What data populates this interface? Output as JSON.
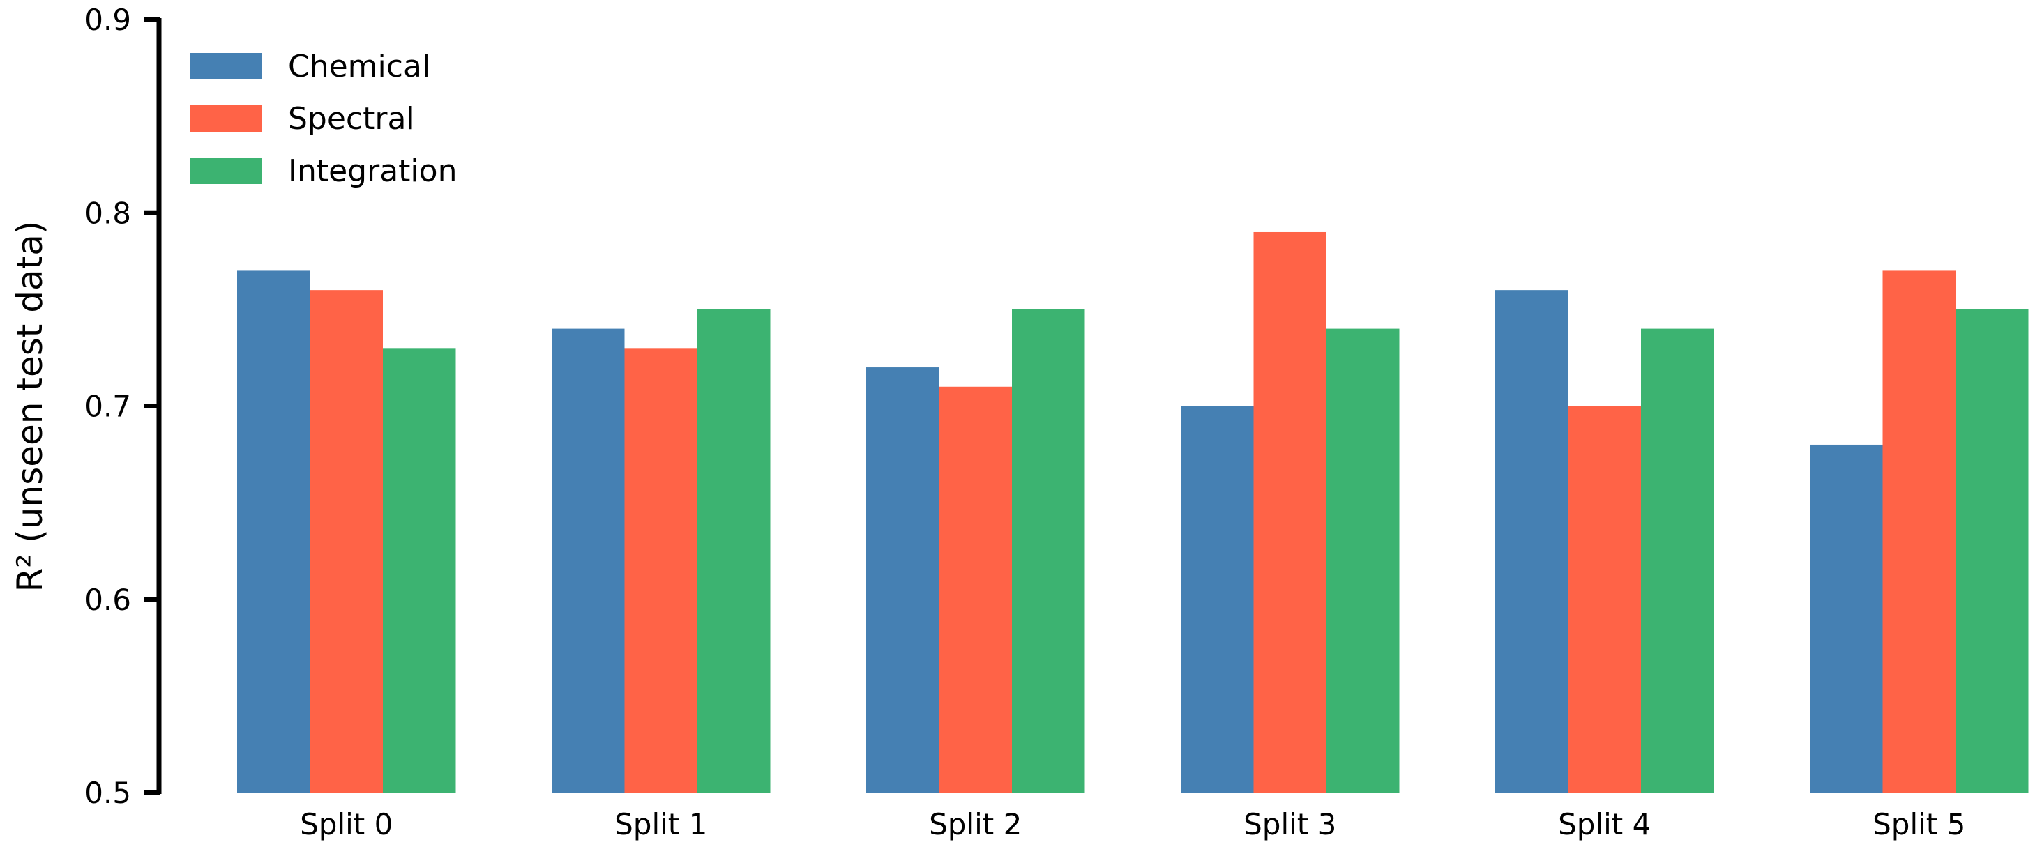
{
  "chart_data": {
    "type": "bar",
    "title": "",
    "xlabel": "",
    "ylabel": "R² (unseen test data)",
    "categories": [
      "Split 0",
      "Split 1",
      "Split 2",
      "Split 3",
      "Split 4",
      "Split 5"
    ],
    "series": [
      {
        "name": "Chemical",
        "color": "#4580B3",
        "values": [
          0.77,
          0.74,
          0.72,
          0.7,
          0.76,
          0.68
        ]
      },
      {
        "name": "Spectral",
        "color": "#FF6347",
        "values": [
          0.76,
          0.73,
          0.71,
          0.79,
          0.7,
          0.77
        ]
      },
      {
        "name": "Integration",
        "color": "#3CB371",
        "values": [
          0.73,
          0.75,
          0.75,
          0.74,
          0.74,
          0.75
        ]
      }
    ],
    "ylim": [
      0.5,
      0.9
    ],
    "yticks": [
      "0.5",
      "0.6",
      "0.7",
      "0.8",
      "0.9"
    ],
    "grid": false,
    "legend_position": "top-left"
  }
}
